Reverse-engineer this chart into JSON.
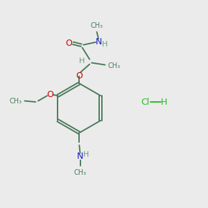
{
  "background_color": "#ebebeb",
  "bond_color": "#4a7a5a",
  "O_color": "#cc0000",
  "N_color": "#1a1acc",
  "H_color": "#6a9a7a",
  "Cl_color": "#22bb22",
  "figsize": [
    3.0,
    3.0
  ],
  "dpi": 100,
  "xlim": [
    0,
    10
  ],
  "ylim": [
    0,
    10
  ]
}
